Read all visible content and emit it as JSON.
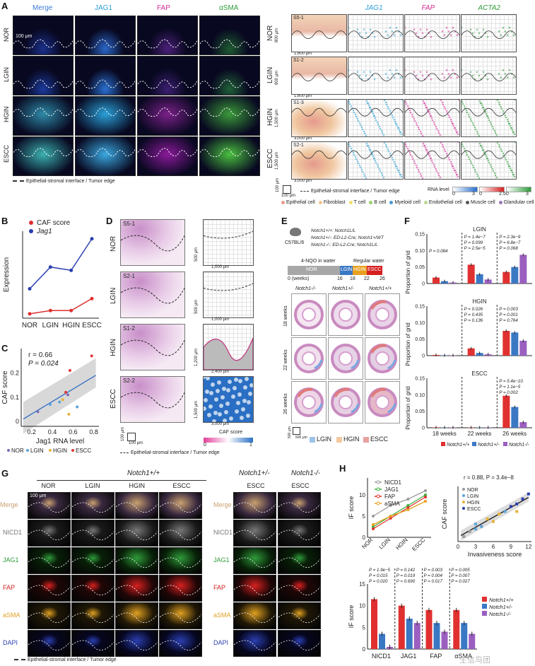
{
  "panelA": {
    "letter": "A",
    "columns": [
      "Merge",
      "JAG1",
      "FAP",
      "αSMA"
    ],
    "column_colors": [
      "#3a7bd5",
      "#2a9fd6",
      "#d62d9a",
      "#2f9b3a"
    ],
    "rows": [
      "NOR",
      "LGIN",
      "HGIN",
      "ESCC"
    ],
    "scale_bar": "100 μm",
    "legend": "Epithelial-stromal interface / Tumor edge"
  },
  "panelA_st": {
    "columns": [
      "JAG1",
      "FAP",
      "ACTA2"
    ],
    "column_colors": [
      "#2a9fd6",
      "#d62d9a",
      "#2f9b3a"
    ],
    "rows": [
      "NOR",
      "LGIN",
      "HGIN",
      "ESCC"
    ],
    "sections": [
      "S5-1",
      "S1-2",
      "S1-3",
      "S2-1"
    ],
    "y_dims": [
      "800 μm",
      "800 μm",
      "1,500 μm",
      "1,500 μm"
    ],
    "x_dims": [
      "1,600 μm",
      "1,600 μm",
      "3,000 μm",
      "3,000 μm"
    ],
    "scale": [
      "100 μm",
      "100 μm"
    ],
    "edge_legend": "Epithelial-stromal interface / Tumor edge",
    "rna_title": "RNA level",
    "rna_scales": [
      [
        "0",
        "3"
      ],
      [
        "0",
        "2.5"
      ],
      [
        "0",
        "3"
      ]
    ],
    "cell_types": [
      {
        "label": "Epithelial cell",
        "color": "#e89a8f"
      },
      {
        "label": "Fibroblast",
        "color": "#f5c48a"
      },
      {
        "label": "T cell",
        "color": "#f2e16b"
      },
      {
        "label": "B cell",
        "color": "#9ccf6b"
      },
      {
        "label": "Myeloid cell",
        "color": "#4a9ad4"
      },
      {
        "label": "Endothelial cell",
        "color": "#b9d98f"
      },
      {
        "label": "Muscle cell",
        "color": "#555555"
      },
      {
        "label": "Glandular cell",
        "color": "#9b77b8"
      }
    ]
  },
  "panelB": {
    "letter": "B",
    "chart_data": {
      "type": "line",
      "categories": [
        "NOR",
        "LGIN",
        "HGIN",
        "ESCC"
      ],
      "series": [
        {
          "name": "CAF score",
          "color": "#e03030",
          "values": [
            0.04,
            0.07,
            0.07,
            0.18
          ]
        },
        {
          "name": "Jag1",
          "color": "#2a3fb0",
          "values": [
            0.27,
            0.47,
            0.44,
            0.73
          ]
        }
      ],
      "ylabel": "Expression",
      "ylim": [
        0,
        0.8
      ]
    }
  },
  "panelC": {
    "letter": "C",
    "stat_r": "r = 0.66",
    "stat_p": "P = 0.024",
    "chart_data": {
      "type": "scatter",
      "xlabel": "Jag1 RNA level",
      "ylabel": "CAF score",
      "xlim": [
        0.1,
        0.85
      ],
      "ylim": [
        -0.02,
        0.3
      ],
      "xticks": [
        "0.2",
        "0.4",
        "0.6",
        "0.8"
      ],
      "yticks": [
        "0",
        "0.1",
        "0.2"
      ],
      "points": [
        {
          "x": 0.26,
          "y": 0.04,
          "group": "NOR"
        },
        {
          "x": 0.38,
          "y": 0.07,
          "group": "LGIN"
        },
        {
          "x": 0.47,
          "y": 0.08,
          "group": "LGIN"
        },
        {
          "x": 0.5,
          "y": 0.09,
          "group": "HGIN"
        },
        {
          "x": 0.53,
          "y": 0.12,
          "group": "ESCC"
        },
        {
          "x": 0.55,
          "y": 0.11,
          "group": "NOR"
        },
        {
          "x": 0.57,
          "y": 0.21,
          "group": "ESCC"
        },
        {
          "x": 0.56,
          "y": 0.03,
          "group": "HGIN"
        },
        {
          "x": 0.64,
          "y": 0.06,
          "group": "LGIN"
        },
        {
          "x": 0.78,
          "y": 0.27,
          "group": "ESCC"
        }
      ],
      "fit": [
        [
          0.12,
          0.01
        ],
        [
          0.82,
          0.19
        ]
      ],
      "legend": [
        {
          "label": "NOR",
          "color": "#7d6ab8"
        },
        {
          "label": "LGIN",
          "color": "#5aa5d8"
        },
        {
          "label": "HGIN",
          "color": "#e8b23a"
        },
        {
          "label": "ESCC",
          "color": "#e03838"
        }
      ]
    }
  },
  "panelD": {
    "letter": "D",
    "rows": [
      "NOR",
      "LGIN",
      "HGIN",
      "ESCC"
    ],
    "sections": [
      "S5-1",
      "S2-1",
      "S1-2",
      "S2-2"
    ],
    "y_dims": [
      "500 μm",
      "500 μm",
      "1,200 μm",
      "1,500 μm"
    ],
    "x_dims": [
      "1,000 μm",
      "1,000 μm",
      "2,400 μm",
      "3,000 μm"
    ],
    "scale": [
      "100 μm",
      "100 μm"
    ],
    "legend": "Epithelial-stromal interface / Tumor edge",
    "caf_title": "CAF score",
    "caf_scale": [
      "0",
      "1"
    ]
  },
  "panelE": {
    "letter": "E",
    "mouse": "C57BL/6",
    "genotypes": [
      "Notch1+/+: Notch1L/L",
      "Notch1+/-: ED-L2-Cre; Notch1+/WT",
      "Notch1-/-: ED-L2-Cre; Notch1L/L"
    ],
    "timeline_left": "4-NQO in water",
    "timeline_right": "Regular water",
    "stages": [
      "NOR",
      "LGIN",
      "HGIN",
      "ESCC"
    ],
    "weeks": [
      "0 (weeks)",
      "16",
      "18",
      "22",
      "26"
    ],
    "columns": [
      "Notch1-/-",
      "Notch1+/-",
      "Notch1+/+"
    ],
    "rows": [
      "18 weeks",
      "22 weeks",
      "26 weeks"
    ],
    "scale": [
      "500 μm",
      "500 μm"
    ],
    "legend": [
      {
        "label": "LGIN",
        "color": "#9ec3e8"
      },
      {
        "label": "HGIN",
        "color": "#f3c9a0"
      },
      {
        "label": "ESCC",
        "color": "#e8a0a0"
      }
    ]
  },
  "panelF": {
    "letter": "F",
    "ylabel": "Proportion of grid",
    "groups": [
      "18 weeks",
      "22 weeks",
      "26 weeks"
    ],
    "legend": [
      {
        "label": "Notch1+/+",
        "color": "#e03030"
      },
      {
        "label": "Notch1+/-",
        "color": "#3b78c4"
      },
      {
        "label": "Notch1-/-",
        "color": "#9b5fc0"
      }
    ],
    "chart_data": [
      {
        "type": "bar",
        "title": "LGIN",
        "ylim": [
          0,
          0.15
        ],
        "yticks": [
          "0",
          "0.05",
          "0.10",
          "0.15"
        ],
        "categories": [
          "18 weeks",
          "22 weeks",
          "26 weeks"
        ],
        "series": [
          {
            "name": "Notch1+/+",
            "values": [
              0.018,
              0.057,
              0.035
            ]
          },
          {
            "name": "Notch1+/-",
            "values": [
              0.007,
              0.028,
              0.05
            ]
          },
          {
            "name": "Notch1-/-",
            "values": [
              0.003,
              0.012,
              0.087
            ]
          }
        ],
        "pvals": [
          [
            "P = 0.084"
          ],
          [
            "P = 1.4e−7",
            "P = 0.099",
            "P = 2.5e−5"
          ],
          [
            "P = 2.3e−9",
            "P = 6.8e−7",
            "P = 0.068"
          ]
        ]
      },
      {
        "type": "bar",
        "title": "HGIN",
        "ylim": [
          0,
          0.15
        ],
        "yticks": [
          "0",
          "0.05",
          "0.10",
          "0.15"
        ],
        "categories": [
          "18 weeks",
          "22 weeks",
          "26 weeks"
        ],
        "series": [
          {
            "name": "Notch1+/+",
            "values": [
              0.002,
              0.022,
              0.075
            ]
          },
          {
            "name": "Notch1+/-",
            "values": [
              0.001,
              0.008,
              0.07
            ]
          },
          {
            "name": "Notch1-/-",
            "values": [
              0.001,
              0.004,
              0.045
            ]
          }
        ],
        "pvals": [
          [],
          [
            "P = 0.026",
            "P = 0.435",
            "P = 0.136"
          ],
          [
            "P = 0.003",
            "P = 0.001",
            "P = 0.764"
          ]
        ]
      },
      {
        "type": "bar",
        "title": "ESCC",
        "ylim": [
          0,
          0.15
        ],
        "yticks": [
          "0",
          "0.05",
          "0.10",
          "0.15"
        ],
        "categories": [
          "18 weeks",
          "22 weeks",
          "26 weeks"
        ],
        "series": [
          {
            "name": "Notch1+/+",
            "values": [
              0.001,
              0.001,
              0.097
            ]
          },
          {
            "name": "Notch1+/-",
            "values": [
              0.001,
              0.001,
              0.063
            ]
          },
          {
            "name": "Notch1-/-",
            "values": [
              0.001,
              0.001,
              0.017
            ]
          }
        ],
        "pvals": [
          [],
          [],
          [
            "P = 5.4e−10",
            "P = 1.1e−5",
            "P = 0.002"
          ]
        ]
      }
    ]
  },
  "panelG": {
    "letter": "G",
    "header_wt": "Notch1+/+",
    "header_het": "Notch1+/-",
    "header_ko": "Notch1-/-",
    "columns_wt": [
      "NOR",
      "LGIN",
      "HGIN",
      "ESCC"
    ],
    "columns_mut": [
      "ESCC",
      "ESCC"
    ],
    "rows": [
      "Merge",
      "NICD1",
      "JAG1",
      "FAP",
      "aSMA",
      "DAPI"
    ],
    "row_colors": [
      "#c9a070",
      "#777777",
      "#2f9b3a",
      "#d62020",
      "#e0a020",
      "#2a3fb0"
    ],
    "scale_bar": "100 μm",
    "legend": "Epithelial-stromal interface / Tumor edge"
  },
  "panelH": {
    "letter": "H",
    "line_chart": {
      "type": "line",
      "categories": [
        "NOR",
        "LGIN",
        "HGIN",
        "ESCC"
      ],
      "ylabel": "IF score",
      "ylim": [
        0,
        14
      ],
      "yticks": [
        "0",
        "5",
        "10"
      ],
      "series": [
        {
          "name": "NICD1",
          "color": "#9a9a9a",
          "values": [
            5.0,
            7.5,
            9.0,
            11.0
          ]
        },
        {
          "name": "JAG1",
          "color": "#3ab03a",
          "values": [
            2.5,
            5.0,
            7.5,
            10.0
          ]
        },
        {
          "name": "FAP",
          "color": "#e03030",
          "values": [
            2.0,
            4.5,
            7.0,
            9.5
          ]
        },
        {
          "name": "aSMA",
          "color": "#e8a020",
          "values": [
            3.0,
            5.0,
            6.5,
            8.5
          ]
        }
      ]
    },
    "scatter_chart": {
      "type": "scatter",
      "stat": "r = 0.88, P = 3.4e−8",
      "xlabel": "Invasiveness score",
      "ylabel": "CAF score",
      "xlim": [
        0,
        12.5
      ],
      "ylim": [
        0,
        1.1
      ],
      "xticks": [
        "0",
        "3",
        "6",
        "9",
        "12"
      ],
      "groups": [
        {
          "label": "NOR",
          "color": "#9a9a9a"
        },
        {
          "label": "LGIN",
          "color": "#5aa5d8"
        },
        {
          "label": "HGIN",
          "color": "#e8b23a"
        },
        {
          "label": "ESCC",
          "color": "#2a3fb0"
        }
      ],
      "points": [
        {
          "x": 1,
          "y": 0.1,
          "g": 0
        },
        {
          "x": 2,
          "y": 0.2,
          "g": 0
        },
        {
          "x": 3,
          "y": 0.25,
          "g": 1
        },
        {
          "x": 3,
          "y": 0.35,
          "g": 1
        },
        {
          "x": 4,
          "y": 0.3,
          "g": 1
        },
        {
          "x": 5,
          "y": 0.45,
          "g": 2
        },
        {
          "x": 6,
          "y": 0.4,
          "g": 2
        },
        {
          "x": 7,
          "y": 0.55,
          "g": 2
        },
        {
          "x": 8,
          "y": 0.6,
          "g": 1
        },
        {
          "x": 9,
          "y": 0.7,
          "g": 3
        },
        {
          "x": 10,
          "y": 0.75,
          "g": 3
        },
        {
          "x": 11,
          "y": 0.85,
          "g": 3
        },
        {
          "x": 12,
          "y": 0.95,
          "g": 3
        },
        {
          "x": 10,
          "y": 0.6,
          "g": 2
        }
      ],
      "fit": [
        [
          0.5,
          0.12
        ],
        [
          12,
          0.88
        ]
      ]
    },
    "bar_chart": {
      "type": "bar",
      "ylabel": "IF score",
      "ylim": [
        0,
        15
      ],
      "yticks": [
        "0",
        "5",
        "10",
        "15"
      ],
      "categories": [
        "NICD1",
        "JAG1",
        "FAP",
        "αSMA"
      ],
      "series": [
        {
          "name": "Notch1+/+",
          "color": "#e03030",
          "values": [
            11.5,
            10.0,
            9.0,
            9.0
          ]
        },
        {
          "name": "Notch1+/-",
          "color": "#3b78c4",
          "values": [
            3.5,
            7.0,
            6.0,
            6.0
          ]
        },
        {
          "name": "Notch1-/-",
          "color": "#9b5fc0",
          "values": [
            0.5,
            6.0,
            4.0,
            3.5
          ]
        }
      ],
      "pvals": [
        [
          "P = 1.9e−5",
          "P = 0.015",
          "P = 0.020"
        ],
        [
          "P = 0.142",
          "P = 0.019",
          "P = 0.690"
        ],
        [
          "P = 0.003",
          "P = 0.004",
          "P = 0.017"
        ],
        [
          "P = 0.005",
          "P = 0.007",
          "P = 0.027"
        ]
      ]
    }
  },
  "watermark": "生信鸟团"
}
